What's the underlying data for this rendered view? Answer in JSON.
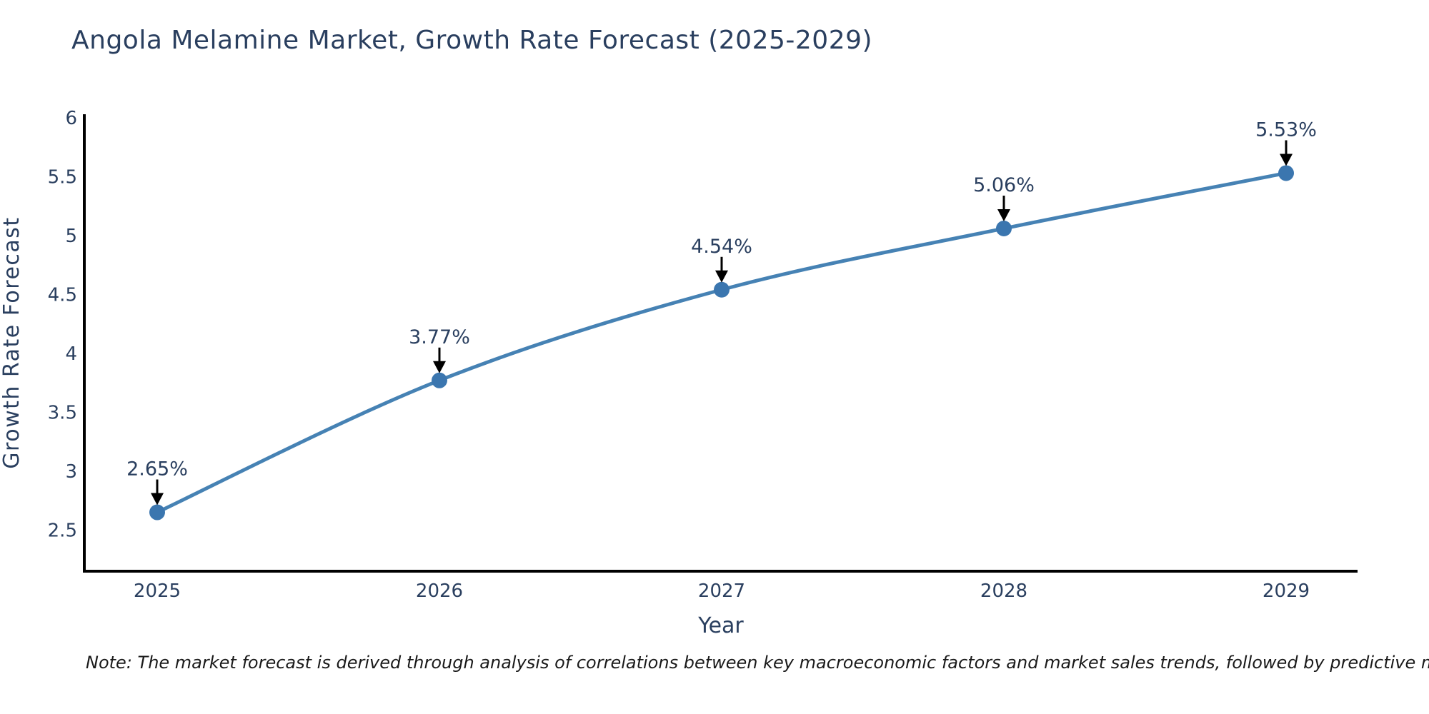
{
  "chart_data": {
    "type": "line",
    "title": "Angola Melamine Market, Growth Rate Forecast (2025-2029)",
    "xlabel": "Year",
    "ylabel": "Growth Rate Forecast",
    "categories": [
      "2025",
      "2026",
      "2027",
      "2028",
      "2029"
    ],
    "series": [
      {
        "name": "Growth Rate Forecast",
        "values": [
          2.65,
          3.77,
          4.54,
          5.06,
          5.53
        ]
      }
    ],
    "point_labels": [
      "2.65%",
      "3.77%",
      "4.54%",
      "5.06%",
      "5.53%"
    ],
    "ytick_labels": [
      "2.5",
      "3",
      "3.5",
      "4",
      "4.5",
      "5",
      "5.5",
      "6"
    ],
    "ytick_values": [
      2.5,
      3,
      3.5,
      4,
      4.5,
      5,
      5.5,
      6
    ],
    "ylim": [
      2.15,
      6.03
    ],
    "grid": false,
    "legend": "none",
    "line_style": "smooth-spline-with-markers",
    "annotation_arrows": true,
    "colors": {
      "line": "#4682b4",
      "marker": "#3b76af",
      "axis": "#000000",
      "text": "#2a3f5f",
      "note": "#1a1a1a"
    },
    "note": "Note: The market forecast is derived through analysis of correlations between key macroeconomic factors and market sales trends, followed by predictive modeling to project future sales"
  }
}
